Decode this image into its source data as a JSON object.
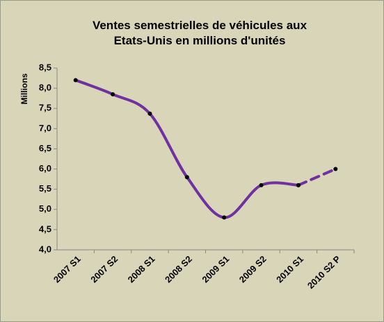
{
  "chart_data": {
    "type": "line",
    "title": [
      "Ventes semestrielles de véhicules aux",
      "Etats-Unis en millions d'unités"
    ],
    "y_label": "Millions",
    "categories": [
      "2007 S1",
      "2007 S2",
      "2008 S1",
      "2008 S2",
      "2009 S1",
      "2009 S2",
      "2010 S1",
      "2010 S2 P"
    ],
    "series": [
      {
        "color": "#7030a0",
        "values": [
          8.2,
          7.85,
          7.37,
          5.8,
          4.8,
          5.6,
          5.6,
          null
        ]
      },
      {
        "color": "#7030a0",
        "dashed": true,
        "values": [
          null,
          null,
          null,
          null,
          null,
          null,
          5.6,
          6.0
        ]
      }
    ],
    "marker_color": "#000000",
    "ylim": [
      4,
      8.5
    ],
    "yticks": [
      {
        "value": 4,
        "label": "4,0"
      },
      {
        "value": 4.5,
        "label": "4,5"
      },
      {
        "value": 5,
        "label": "5,0"
      },
      {
        "value": 5.5,
        "label": "5,5"
      },
      {
        "value": 6,
        "label": "6,0"
      },
      {
        "value": 6.5,
        "label": "6,5"
      },
      {
        "value": 7,
        "label": "7,0"
      },
      {
        "value": 7.5,
        "label": "7,5"
      },
      {
        "value": 8,
        "label": "8,0"
      },
      {
        "value": 8.5,
        "label": "8,5"
      }
    ],
    "grid": false
  }
}
